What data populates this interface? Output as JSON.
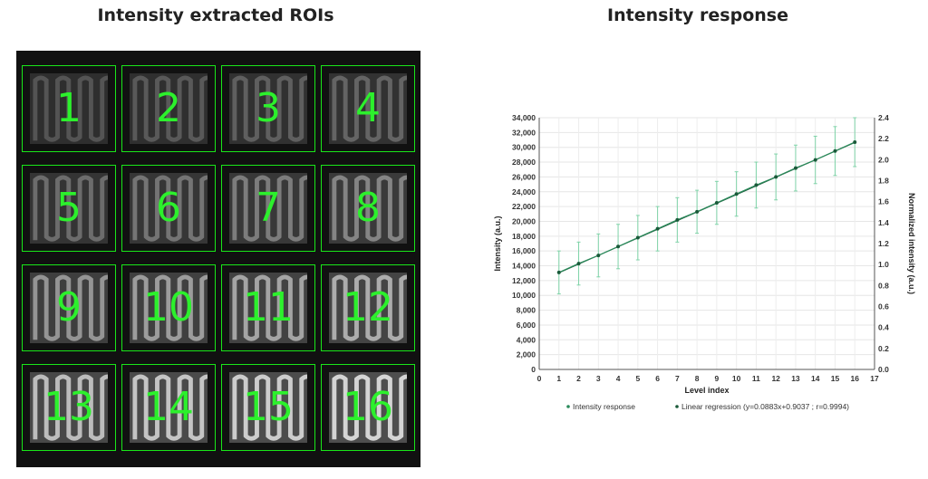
{
  "left_title": "Intensity extracted ROIs",
  "right_title": "Intensity response",
  "rois": [
    {
      "label": "1",
      "level": 0.15
    },
    {
      "label": "5",
      "level": 0.3
    },
    {
      "label": "9",
      "level": 0.55
    },
    {
      "label": "13",
      "level": 0.8
    },
    {
      "label": "2",
      "level": 0.18
    },
    {
      "label": "6",
      "level": 0.35
    },
    {
      "label": "10",
      "level": 0.6
    },
    {
      "label": "14",
      "level": 0.85
    },
    {
      "label": "3",
      "level": 0.22
    },
    {
      "label": "7",
      "level": 0.4
    },
    {
      "label": "11",
      "level": 0.65
    },
    {
      "label": "15",
      "level": 0.9
    },
    {
      "label": "4",
      "level": 0.25
    },
    {
      "label": "8",
      "level": 0.45
    },
    {
      "label": "12",
      "level": 0.7
    },
    {
      "label": "16",
      "level": 0.95
    }
  ],
  "colors": {
    "roi_border": "#19e619",
    "roi_label": "#2cf02c",
    "series": "#2a8a5a",
    "regression": "#1a5a3a",
    "error_bar": "#7fd3a8"
  },
  "chart_data": {
    "type": "line",
    "title": "Intensity response",
    "xlabel": "Level index",
    "ylabel": "Intensity (a.u.)",
    "y2label": "Normalized intensity (a.u.)",
    "xlim": [
      0,
      17
    ],
    "ylim": [
      0,
      34000
    ],
    "y2lim": [
      0,
      2.4
    ],
    "x_ticks": [
      0,
      1,
      2,
      3,
      4,
      5,
      6,
      7,
      8,
      9,
      10,
      11,
      12,
      13,
      14,
      15,
      16,
      17
    ],
    "y_ticks": [
      0,
      2000,
      4000,
      6000,
      8000,
      10000,
      12000,
      14000,
      16000,
      18000,
      20000,
      22000,
      24000,
      26000,
      28000,
      30000,
      32000,
      34000
    ],
    "y_tick_labels": [
      "0",
      "2,000",
      "4,000",
      "6,000",
      "8,000",
      "10,000",
      "12,000",
      "14,000",
      "16,000",
      "18,000",
      "20,000",
      "22,000",
      "24,000",
      "26,000",
      "28,000",
      "30,000",
      "32,000",
      "34,000"
    ],
    "y2_ticks": [
      0,
      0.2,
      0.4,
      0.6,
      0.8,
      1.0,
      1.2,
      1.4,
      1.6,
      1.8,
      2.0,
      2.2,
      2.4
    ],
    "y2_tick_labels": [
      "0.0",
      "0.2",
      "0.4",
      "0.6",
      "0.8",
      "1.0",
      "1.2",
      "1.4",
      "1.6",
      "1.8",
      "2.0",
      "2.2",
      "2.4"
    ],
    "grid": true,
    "legend_position": "bottom",
    "series": [
      {
        "name": "Intensity response",
        "x": [
          1,
          2,
          3,
          4,
          5,
          6,
          7,
          8,
          9,
          10,
          11,
          12,
          13,
          14,
          15,
          16
        ],
        "values": [
          13100,
          14300,
          15400,
          16600,
          17800,
          19000,
          20200,
          21300,
          22500,
          23700,
          24900,
          26000,
          27200,
          28300,
          29500,
          30700
        ],
        "error": [
          2900,
          2900,
          2900,
          3000,
          3000,
          3000,
          3000,
          2900,
          2900,
          3000,
          3100,
          3100,
          3100,
          3200,
          3300,
          3300
        ]
      },
      {
        "name": "Linear regression (y=0.0883x+0.9037 ; r=0.9994)",
        "x": [
          1,
          16
        ],
        "values": [
          13050,
          30650
        ]
      }
    ]
  }
}
